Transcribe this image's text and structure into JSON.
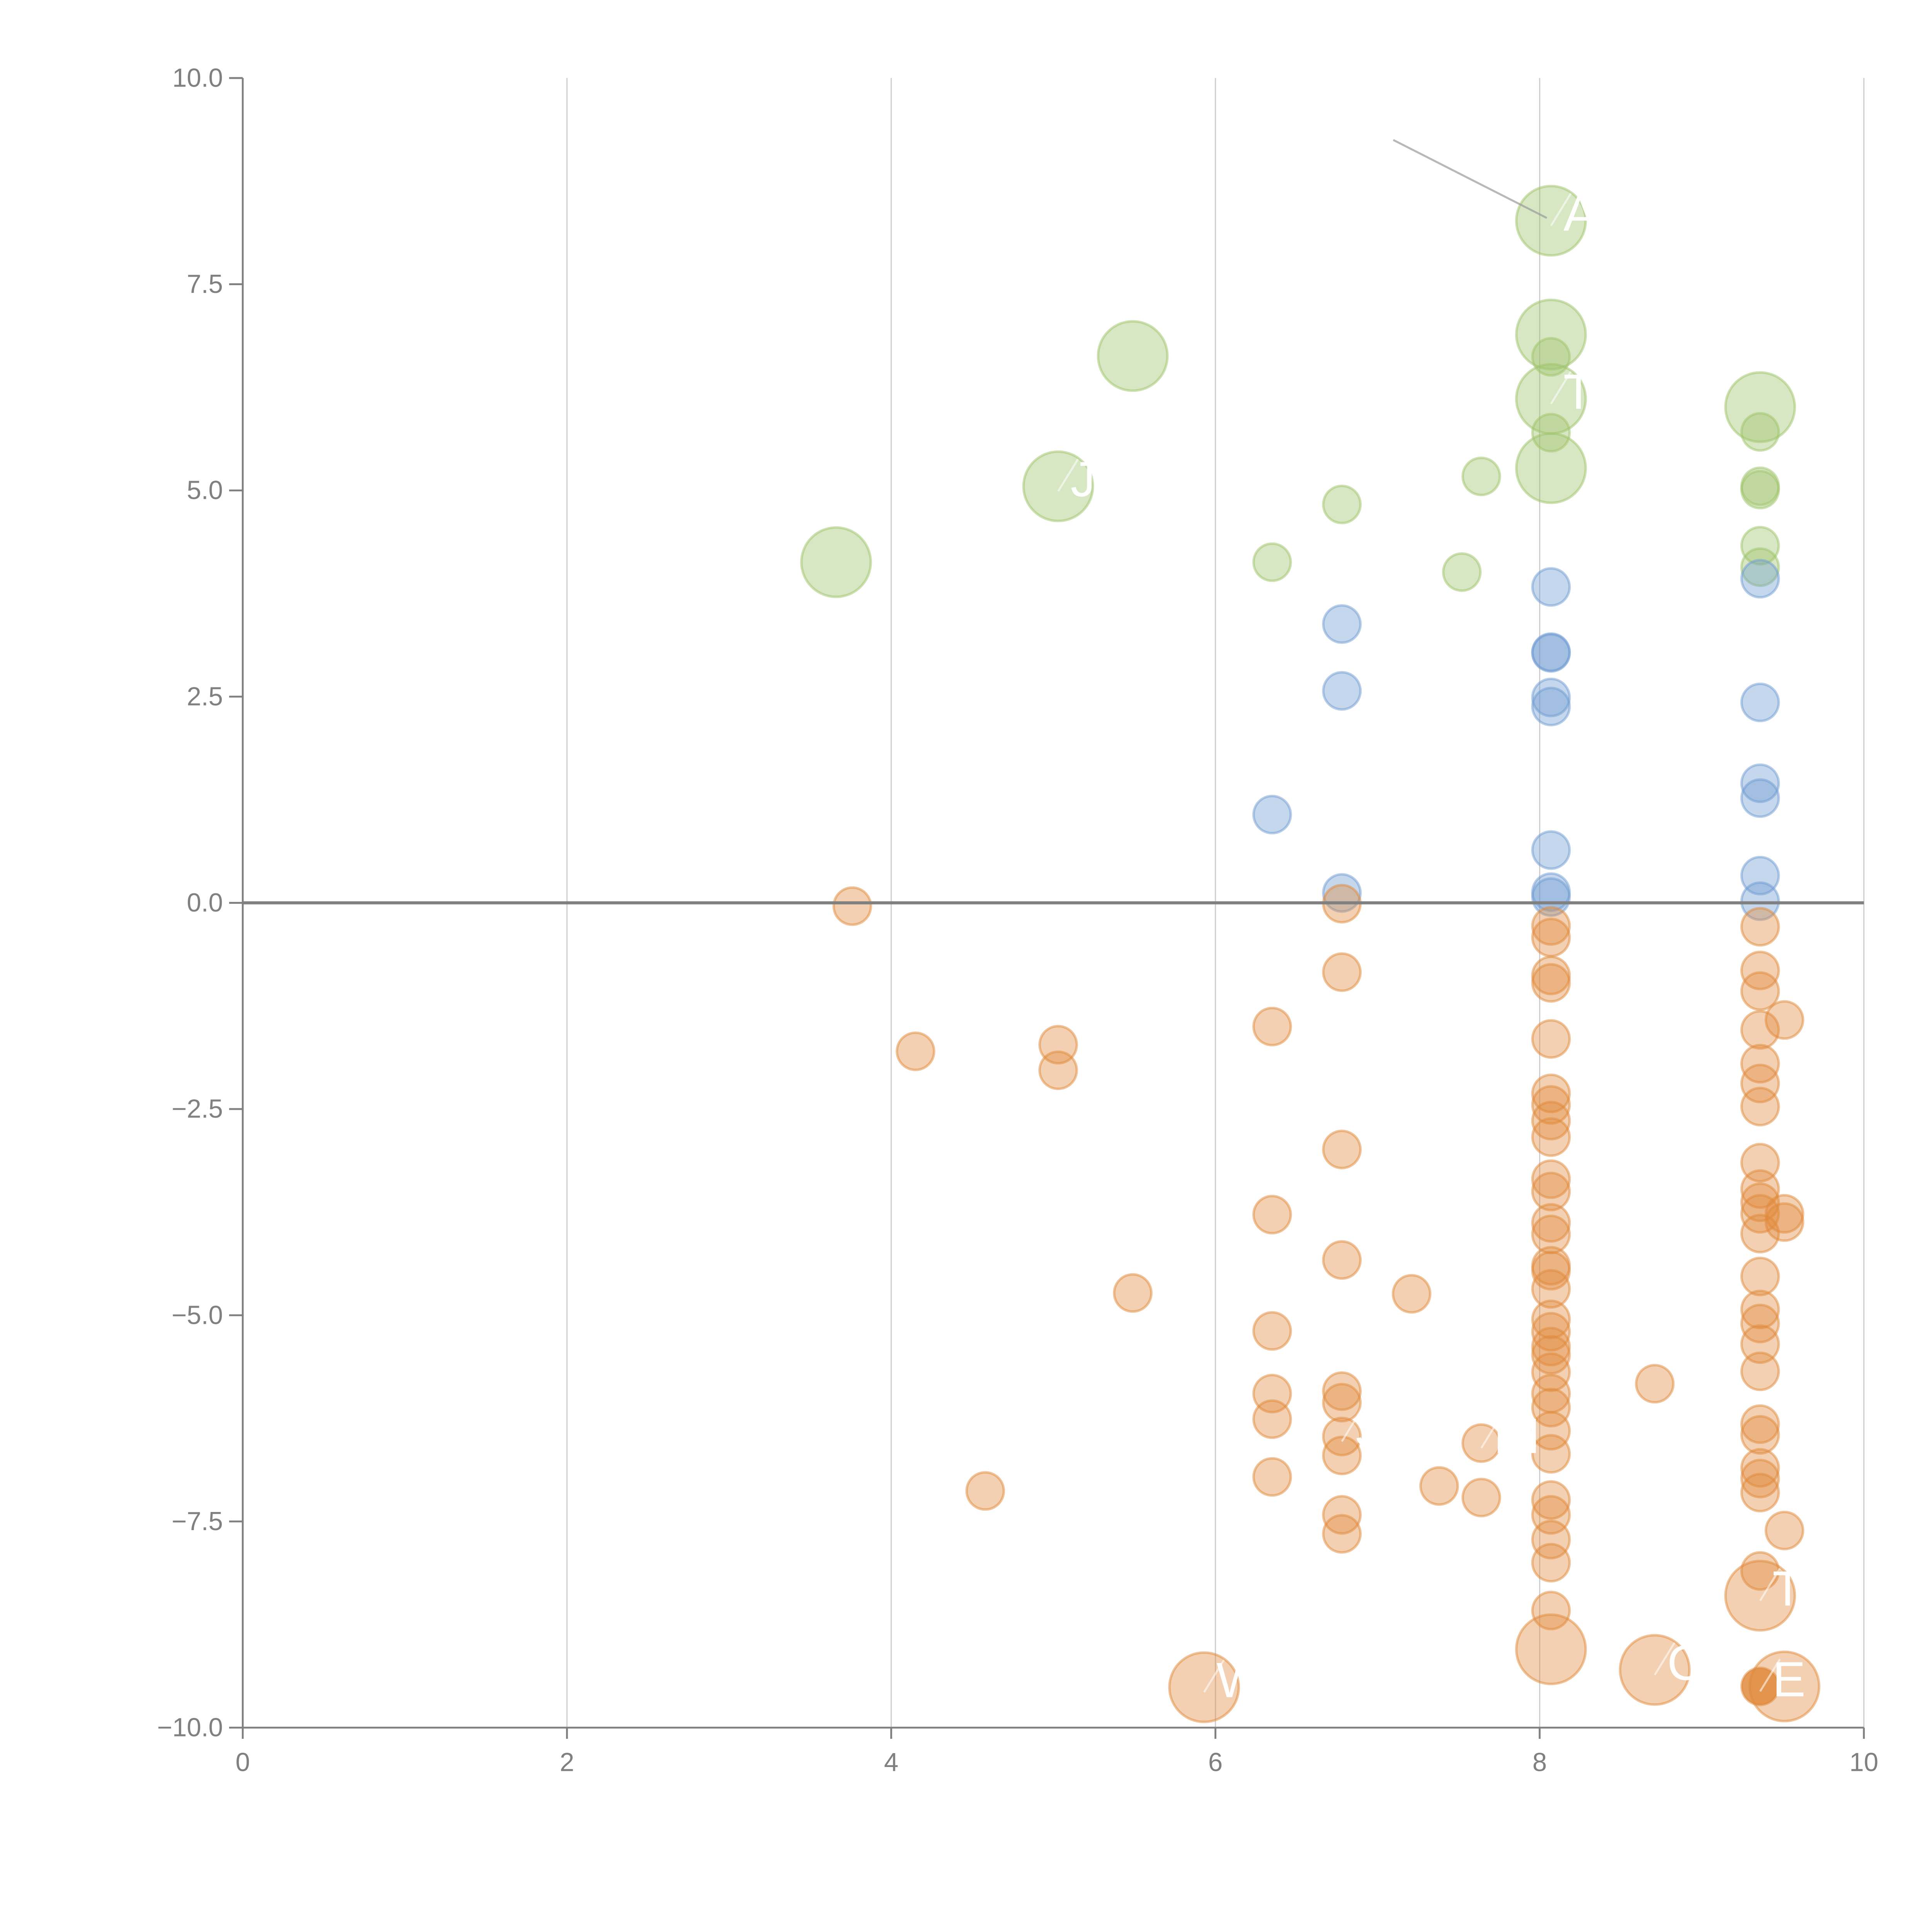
{
  "chart_data": {
    "type": "scatter",
    "title": "",
    "xlabel": "",
    "ylabel": "",
    "xlim": [
      0,
      10
    ],
    "ylim": [
      -10,
      10
    ],
    "x_ticks": [
      "0",
      "2",
      "4",
      "6",
      "8",
      "10"
    ],
    "y_ticks": [
      "10.0",
      "7.5",
      "5.0",
      "2.5",
      "0.0",
      "−2.5",
      "−5.0",
      "−7.5",
      "−10.0"
    ],
    "x_tick_values": [
      0,
      2,
      4,
      6,
      8,
      10
    ],
    "y_tick_values": [
      10,
      7.5,
      5,
      2.5,
      0,
      -2.5,
      -5,
      -7.5,
      -10
    ],
    "grid": "vertical",
    "reference_line_y": 0,
    "legend": "none",
    "series": [
      {
        "name": "green",
        "color": "#9dc46a",
        "points": [
          {
            "x": 3.66,
            "y": 4.13,
            "size": "large"
          },
          {
            "x": 5.03,
            "y": 5.05,
            "size": "large",
            "label": "J"
          },
          {
            "x": 5.49,
            "y": 6.63,
            "size": "large"
          },
          {
            "x": 8.07,
            "y": 8.27,
            "size": "large",
            "label": "A"
          },
          {
            "x": 8.07,
            "y": 6.89,
            "size": "large"
          },
          {
            "x": 8.07,
            "y": 6.11,
            "size": "large",
            "label": "T"
          },
          {
            "x": 8.07,
            "y": 5.27,
            "size": "large"
          },
          {
            "x": 9.36,
            "y": 6.01,
            "size": "large"
          },
          {
            "x": 6.35,
            "y": 4.13,
            "size": "small"
          },
          {
            "x": 6.78,
            "y": 4.83,
            "size": "small"
          },
          {
            "x": 7.52,
            "y": 4.01,
            "size": "small"
          },
          {
            "x": 7.64,
            "y": 5.17,
            "size": "small"
          },
          {
            "x": 8.07,
            "y": 6.62,
            "size": "small"
          },
          {
            "x": 8.07,
            "y": 5.7,
            "size": "small"
          },
          {
            "x": 9.36,
            "y": 5.71,
            "size": "small"
          },
          {
            "x": 9.36,
            "y": 5.05,
            "size": "small"
          },
          {
            "x": 9.36,
            "y": 5.01,
            "size": "small"
          },
          {
            "x": 9.36,
            "y": 4.33,
            "size": "small"
          },
          {
            "x": 9.36,
            "y": 4.07,
            "size": "small"
          }
        ]
      },
      {
        "name": "blue",
        "color": "#6f9bd1",
        "points": [
          {
            "x": 6.35,
            "y": 1.07,
            "size": "small"
          },
          {
            "x": 6.78,
            "y": 3.38,
            "size": "small"
          },
          {
            "x": 6.78,
            "y": 2.57,
            "size": "small"
          },
          {
            "x": 6.78,
            "y": 0.12,
            "size": "small"
          },
          {
            "x": 8.07,
            "y": 3.83,
            "size": "small"
          },
          {
            "x": 8.07,
            "y": 3.04,
            "size": "small"
          },
          {
            "x": 8.07,
            "y": 3.03,
            "size": "small"
          },
          {
            "x": 8.07,
            "y": 2.49,
            "size": "small"
          },
          {
            "x": 8.07,
            "y": 2.38,
            "size": "small"
          },
          {
            "x": 8.07,
            "y": 0.64,
            "size": "small"
          },
          {
            "x": 8.07,
            "y": 0.13,
            "size": "small"
          },
          {
            "x": 8.07,
            "y": 0.07,
            "size": "small"
          },
          {
            "x": 9.36,
            "y": 3.93,
            "size": "small"
          },
          {
            "x": 9.36,
            "y": 2.43,
            "size": "small"
          },
          {
            "x": 9.36,
            "y": 1.45,
            "size": "small"
          },
          {
            "x": 9.36,
            "y": 1.27,
            "size": "small"
          },
          {
            "x": 9.36,
            "y": 0.33,
            "size": "small"
          },
          {
            "x": 9.36,
            "y": 0.02,
            "size": "small"
          }
        ]
      },
      {
        "name": "orange",
        "color": "#e08a3c",
        "points": [
          {
            "x": 3.76,
            "y": -0.04,
            "size": "small"
          },
          {
            "x": 4.15,
            "y": -1.8,
            "size": "small"
          },
          {
            "x": 4.58,
            "y": -7.13,
            "size": "small"
          },
          {
            "x": 5.03,
            "y": -1.72,
            "size": "small"
          },
          {
            "x": 5.03,
            "y": -2.03,
            "size": "small"
          },
          {
            "x": 5.49,
            "y": -4.73,
            "size": "small"
          },
          {
            "x": 5.93,
            "y": -9.51,
            "size": "large",
            "label": "W"
          },
          {
            "x": 6.35,
            "y": -1.5,
            "size": "small"
          },
          {
            "x": 6.35,
            "y": -3.78,
            "size": "small"
          },
          {
            "x": 6.35,
            "y": -5.19,
            "size": "small"
          },
          {
            "x": 6.35,
            "y": -5.95,
            "size": "small"
          },
          {
            "x": 6.35,
            "y": -6.26,
            "size": "small"
          },
          {
            "x": 6.35,
            "y": -6.96,
            "size": "small"
          },
          {
            "x": 6.78,
            "y": -0.01,
            "size": "small"
          },
          {
            "x": 6.78,
            "y": -0.84,
            "size": "small"
          },
          {
            "x": 6.78,
            "y": -2.99,
            "size": "small"
          },
          {
            "x": 6.78,
            "y": -4.33,
            "size": "small"
          },
          {
            "x": 6.78,
            "y": -5.92,
            "size": "small"
          },
          {
            "x": 6.78,
            "y": -6.06,
            "size": "small"
          },
          {
            "x": 6.78,
            "y": -6.47,
            "size": "small",
            "label": "S"
          },
          {
            "x": 6.78,
            "y": -6.7,
            "size": "small"
          },
          {
            "x": 6.78,
            "y": -7.42,
            "size": "small"
          },
          {
            "x": 6.78,
            "y": -7.65,
            "size": "small"
          },
          {
            "x": 7.21,
            "y": -4.74,
            "size": "small"
          },
          {
            "x": 7.38,
            "y": -7.07,
            "size": "small"
          },
          {
            "x": 7.64,
            "y": -6.55,
            "size": "small",
            "label": "PI"
          },
          {
            "x": 7.64,
            "y": -7.21,
            "size": "small"
          },
          {
            "x": 8.07,
            "y": -0.28,
            "size": "small"
          },
          {
            "x": 8.07,
            "y": -0.42,
            "size": "small"
          },
          {
            "x": 8.07,
            "y": -0.88,
            "size": "small"
          },
          {
            "x": 8.07,
            "y": -0.97,
            "size": "small"
          },
          {
            "x": 8.07,
            "y": -1.65,
            "size": "small"
          },
          {
            "x": 8.07,
            "y": -2.31,
            "size": "small"
          },
          {
            "x": 8.07,
            "y": -2.45,
            "size": "small"
          },
          {
            "x": 8.07,
            "y": -2.64,
            "size": "small"
          },
          {
            "x": 8.07,
            "y": -2.84,
            "size": "small"
          },
          {
            "x": 8.07,
            "y": -3.35,
            "size": "small"
          },
          {
            "x": 8.07,
            "y": -3.5,
            "size": "small"
          },
          {
            "x": 8.07,
            "y": -3.88,
            "size": "small"
          },
          {
            "x": 8.07,
            "y": -4.02,
            "size": "small"
          },
          {
            "x": 8.07,
            "y": -4.4,
            "size": "small"
          },
          {
            "x": 8.07,
            "y": -4.46,
            "size": "small"
          },
          {
            "x": 8.07,
            "y": -4.68,
            "size": "small"
          },
          {
            "x": 8.07,
            "y": -5.05,
            "size": "small"
          },
          {
            "x": 8.07,
            "y": -5.2,
            "size": "small"
          },
          {
            "x": 8.07,
            "y": -5.38,
            "size": "small"
          },
          {
            "x": 8.07,
            "y": -5.48,
            "size": "small"
          },
          {
            "x": 8.07,
            "y": -5.69,
            "size": "small"
          },
          {
            "x": 8.07,
            "y": -5.95,
            "size": "small"
          },
          {
            "x": 8.07,
            "y": -6.12,
            "size": "small"
          },
          {
            "x": 8.07,
            "y": -6.4,
            "size": "small"
          },
          {
            "x": 8.07,
            "y": -6.68,
            "size": "small"
          },
          {
            "x": 8.07,
            "y": -7.24,
            "size": "small"
          },
          {
            "x": 8.07,
            "y": -7.42,
            "size": "small"
          },
          {
            "x": 8.07,
            "y": -7.72,
            "size": "small"
          },
          {
            "x": 8.07,
            "y": -8.0,
            "size": "small"
          },
          {
            "x": 8.07,
            "y": -8.58,
            "size": "small"
          },
          {
            "x": 8.07,
            "y": -9.05,
            "size": "large"
          },
          {
            "x": 8.71,
            "y": -5.83,
            "size": "small"
          },
          {
            "x": 8.71,
            "y": -9.3,
            "size": "large",
            "label": "CA"
          },
          {
            "x": 9.36,
            "y": -0.29,
            "size": "small"
          },
          {
            "x": 9.36,
            "y": -0.82,
            "size": "small"
          },
          {
            "x": 9.36,
            "y": -1.07,
            "size": "small"
          },
          {
            "x": 9.36,
            "y": -1.54,
            "size": "small"
          },
          {
            "x": 9.36,
            "y": -1.95,
            "size": "small"
          },
          {
            "x": 9.36,
            "y": -2.19,
            "size": "small"
          },
          {
            "x": 9.36,
            "y": -2.47,
            "size": "small"
          },
          {
            "x": 9.36,
            "y": -3.15,
            "size": "small"
          },
          {
            "x": 9.36,
            "y": -3.47,
            "size": "small"
          },
          {
            "x": 9.36,
            "y": -3.63,
            "size": "small"
          },
          {
            "x": 9.36,
            "y": -3.77,
            "size": "small"
          },
          {
            "x": 9.36,
            "y": -4.01,
            "size": "small"
          },
          {
            "x": 9.36,
            "y": -4.53,
            "size": "small"
          },
          {
            "x": 9.36,
            "y": -4.93,
            "size": "small"
          },
          {
            "x": 9.36,
            "y": -5.1,
            "size": "small"
          },
          {
            "x": 9.36,
            "y": -5.35,
            "size": "small"
          },
          {
            "x": 9.36,
            "y": -5.68,
            "size": "small"
          },
          {
            "x": 9.36,
            "y": -6.32,
            "size": "small"
          },
          {
            "x": 9.36,
            "y": -6.45,
            "size": "small"
          },
          {
            "x": 9.36,
            "y": -6.85,
            "size": "small"
          },
          {
            "x": 9.36,
            "y": -6.98,
            "size": "small"
          },
          {
            "x": 9.36,
            "y": -7.15,
            "size": "small"
          },
          {
            "x": 9.36,
            "y": -8.1,
            "size": "small"
          },
          {
            "x": 9.36,
            "y": -8.4,
            "size": "large",
            "label": "TO"
          },
          {
            "x": 9.36,
            "y": -9.5,
            "size": "small",
            "label": "E",
            "emphasis": true
          },
          {
            "x": 9.51,
            "y": -1.42,
            "size": "small"
          },
          {
            "x": 9.51,
            "y": -3.77,
            "size": "small"
          },
          {
            "x": 9.51,
            "y": -3.87,
            "size": "small"
          },
          {
            "x": 9.51,
            "y": -7.61,
            "size": "small"
          },
          {
            "x": 9.51,
            "y": -9.5,
            "size": "large"
          }
        ]
      }
    ]
  }
}
